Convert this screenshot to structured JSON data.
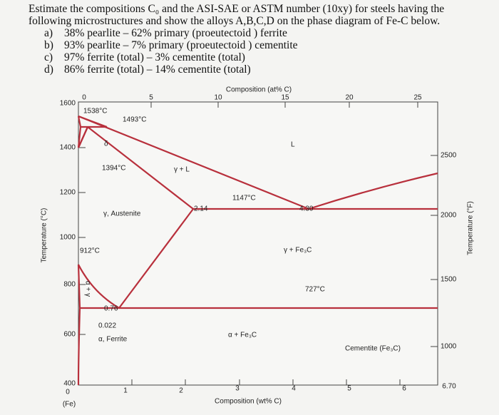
{
  "question": {
    "text": "Estimate the compositions C₀ and the ASI-SAE or ASTM number (10xy) for steels having the following microstructures and show the alloys A,B,C,D on the phase diagram of Fe-C below.",
    "items": [
      {
        "label": "a)",
        "text": "38% pearlite – 62% primary (proeutectoid ) ferrite"
      },
      {
        "label": "b)",
        "text": "93% pearlite – 7% primary (proeutectoid ) cementite"
      },
      {
        "label": "c)",
        "text": "97% ferrite (total) – 3% cementite (total)"
      },
      {
        "label": "d)",
        "text": "86% ferrite (total) – 14% cementite (total)"
      }
    ]
  },
  "diagram": {
    "top_axis_title": "Composition (at% C)",
    "top_ticks": [
      "0",
      "5",
      "10",
      "15",
      "20",
      "25"
    ],
    "x_axis_title": "Composition (wt% C)",
    "x_ticks": [
      "0",
      "1",
      "2",
      "3",
      "4",
      "5",
      "6",
      "6.70"
    ],
    "x_origin_note": "(Fe)",
    "y_axis_title": "Temperature (°C)",
    "y_ticks": [
      "1600",
      "1400",
      "1200",
      "1000",
      "800",
      "600",
      "400"
    ],
    "y2_axis_title": "Temperature (°F)",
    "y2_ticks": [
      "2500",
      "2000",
      "1500",
      "1000"
    ],
    "labels": [
      "1538°C",
      "1493°C",
      "1394°C",
      "1147°C",
      "912°C",
      "727°C",
      "2.14",
      "4.30",
      "0.76",
      "0.022",
      "δ",
      "γ + L",
      "L",
      "γ, Austenite",
      "γ + Fe₃C",
      "α + Fe₃C",
      "α, Ferrite",
      "Cementite (Fe₃C)",
      "α + γ"
    ]
  }
}
